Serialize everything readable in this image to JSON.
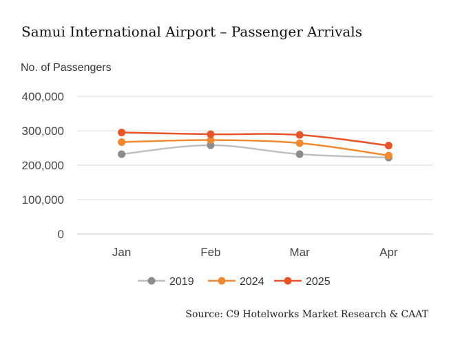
{
  "chart_data": {
    "type": "line",
    "title": "Samui International Airport – Passenger Arrivals",
    "ylabel": "No. of Passengers",
    "xlabel": "",
    "source": "Source: C9 Hotelworks Market Research & CAAT",
    "categories": [
      "Jan",
      "Feb",
      "Mar",
      "Apr"
    ],
    "ylim": [
      0,
      400000
    ],
    "yticks": [
      0,
      100000,
      200000,
      300000,
      400000
    ],
    "ytick_labels": [
      "0",
      "100,000",
      "200,000",
      "300,000",
      "400,000"
    ],
    "grid": true,
    "legend_position": "bottom",
    "series": [
      {
        "name": "2019",
        "values": [
          232000,
          258000,
          232000,
          222000
        ],
        "line_color": "#c0c0c0",
        "marker_color": "#8c8c8c"
      },
      {
        "name": "2024",
        "values": [
          267000,
          273000,
          264000,
          228000
        ],
        "line_color": "#f08a30",
        "marker_color": "#f08a30"
      },
      {
        "name": "2025",
        "values": [
          295000,
          290000,
          288000,
          257000
        ],
        "line_color": "#e8542a",
        "marker_color": "#e8542a"
      }
    ]
  }
}
